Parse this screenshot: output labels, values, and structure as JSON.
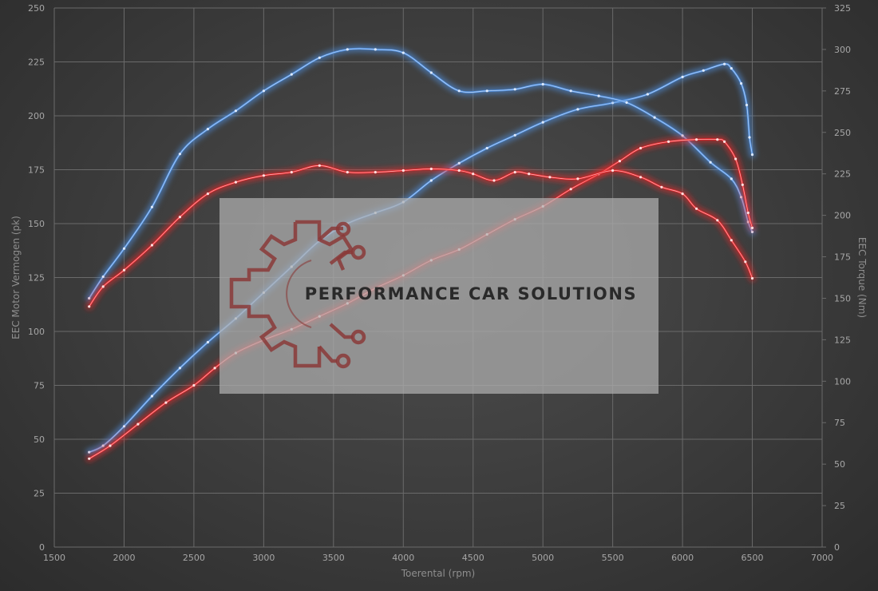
{
  "watermark": {
    "text": "PERFORMANCE CAR SOLUTIONS"
  },
  "colors": {
    "blue": "#4f8fe0",
    "red": "#e8262b",
    "grid": "#6a6a6a",
    "text": "#a6a6a6"
  },
  "chart_data": {
    "type": "line",
    "xlabel": "Toerental (rpm)",
    "ylabel": "EEC Motor Vermogen (pk)",
    "y2label": "EEC Torque (Nm)",
    "xlim": [
      1500,
      7000
    ],
    "ylim": [
      0,
      250
    ],
    "y2lim": [
      0,
      325
    ],
    "xticks": [
      "1500",
      "2000",
      "2500",
      "3000",
      "3500",
      "4000",
      "4500",
      "5000",
      "5500",
      "6000",
      "6500",
      "7000"
    ],
    "yticks": [
      "0",
      "25",
      "50",
      "75",
      "100",
      "125",
      "150",
      "175",
      "200",
      "225",
      "250"
    ],
    "y2ticks": [
      "0",
      "25",
      "50",
      "75",
      "100",
      "125",
      "150",
      "175",
      "200",
      "225",
      "250",
      "275",
      "300",
      "325"
    ],
    "grid": true,
    "series": [
      {
        "color": "#4f8fe0",
        "axis": "power",
        "points": [
          [
            1750,
            44
          ],
          [
            1850,
            47
          ],
          [
            2000,
            56
          ],
          [
            2200,
            70
          ],
          [
            2400,
            83
          ],
          [
            2600,
            95
          ],
          [
            2800,
            106
          ],
          [
            3000,
            118
          ],
          [
            3200,
            130
          ],
          [
            3400,
            142
          ],
          [
            3600,
            150
          ],
          [
            3800,
            155
          ],
          [
            4000,
            160
          ],
          [
            4200,
            170
          ],
          [
            4400,
            178
          ],
          [
            4600,
            185
          ],
          [
            4800,
            191
          ],
          [
            5000,
            197
          ],
          [
            5250,
            203
          ],
          [
            5500,
            206
          ],
          [
            5750,
            210
          ],
          [
            6000,
            218
          ],
          [
            6150,
            221
          ],
          [
            6300,
            224
          ],
          [
            6350,
            222
          ],
          [
            6420,
            215
          ],
          [
            6460,
            205
          ],
          [
            6480,
            190
          ],
          [
            6500,
            182
          ]
        ]
      },
      {
        "color": "#4f8fe0",
        "axis": "torque",
        "points": [
          [
            1750,
            150
          ],
          [
            1850,
            163
          ],
          [
            2000,
            180
          ],
          [
            2200,
            205
          ],
          [
            2400,
            237
          ],
          [
            2600,
            252
          ],
          [
            2800,
            263
          ],
          [
            3000,
            275
          ],
          [
            3200,
            285
          ],
          [
            3400,
            295
          ],
          [
            3600,
            300
          ],
          [
            3800,
            300
          ],
          [
            4000,
            298
          ],
          [
            4200,
            286
          ],
          [
            4400,
            275
          ],
          [
            4600,
            275
          ],
          [
            4800,
            276
          ],
          [
            5000,
            279
          ],
          [
            5200,
            275
          ],
          [
            5400,
            272
          ],
          [
            5600,
            268
          ],
          [
            5800,
            259
          ],
          [
            6000,
            248
          ],
          [
            6200,
            232
          ],
          [
            6350,
            222
          ],
          [
            6420,
            211
          ],
          [
            6470,
            196
          ],
          [
            6500,
            190
          ]
        ]
      },
      {
        "color": "#e8262b",
        "axis": "power",
        "points": [
          [
            1750,
            41
          ],
          [
            1900,
            47
          ],
          [
            2100,
            57
          ],
          [
            2300,
            67
          ],
          [
            2500,
            75
          ],
          [
            2650,
            83
          ],
          [
            2800,
            90
          ],
          [
            3000,
            96
          ],
          [
            3200,
            101
          ],
          [
            3400,
            107
          ],
          [
            3600,
            113
          ],
          [
            3800,
            120
          ],
          [
            4000,
            126
          ],
          [
            4200,
            133
          ],
          [
            4400,
            138
          ],
          [
            4600,
            145
          ],
          [
            4800,
            152
          ],
          [
            5000,
            158
          ],
          [
            5200,
            166
          ],
          [
            5400,
            173
          ],
          [
            5550,
            179
          ],
          [
            5700,
            185
          ],
          [
            5900,
            188
          ],
          [
            6100,
            189
          ],
          [
            6250,
            189
          ],
          [
            6300,
            188
          ],
          [
            6380,
            180
          ],
          [
            6430,
            168
          ],
          [
            6470,
            155
          ],
          [
            6500,
            148
          ]
        ]
      },
      {
        "color": "#e8262b",
        "axis": "torque",
        "points": [
          [
            1750,
            145
          ],
          [
            1850,
            157
          ],
          [
            2000,
            167
          ],
          [
            2200,
            182
          ],
          [
            2400,
            199
          ],
          [
            2600,
            213
          ],
          [
            2800,
            220
          ],
          [
            3000,
            224
          ],
          [
            3200,
            226
          ],
          [
            3400,
            230
          ],
          [
            3600,
            226
          ],
          [
            3800,
            226
          ],
          [
            4000,
            227
          ],
          [
            4200,
            228
          ],
          [
            4400,
            227
          ],
          [
            4500,
            225
          ],
          [
            4650,
            221
          ],
          [
            4800,
            226
          ],
          [
            4900,
            225
          ],
          [
            5050,
            223
          ],
          [
            5250,
            222
          ],
          [
            5500,
            227
          ],
          [
            5700,
            223
          ],
          [
            5850,
            217
          ],
          [
            6000,
            213
          ],
          [
            6100,
            204
          ],
          [
            6250,
            197
          ],
          [
            6350,
            185
          ],
          [
            6450,
            172
          ],
          [
            6500,
            162
          ]
        ]
      }
    ]
  }
}
